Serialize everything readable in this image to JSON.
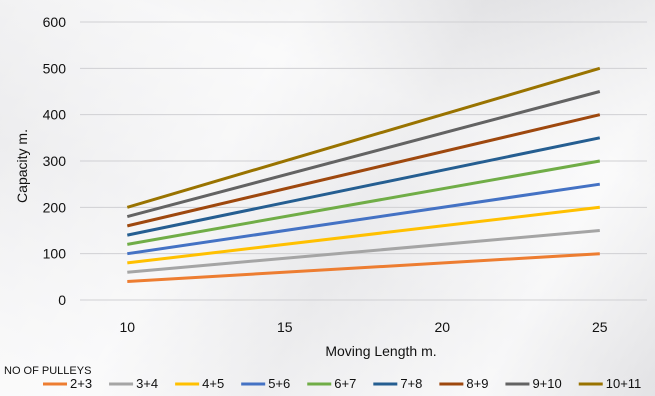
{
  "chart_data": {
    "type": "line",
    "title": "",
    "xlabel": "Moving Length m.",
    "ylabel": "Capacity m.",
    "xlim": [
      8.5,
      26.5
    ],
    "ylim": [
      0,
      600
    ],
    "x_ticks": [
      "10",
      "15",
      "20",
      "25"
    ],
    "y_ticks": [
      "0",
      "100",
      "200",
      "300",
      "400",
      "500",
      "600"
    ],
    "x": [
      10,
      25
    ],
    "grid": "horizontal",
    "legend_title": "NO OF PULLEYS",
    "legend_position": "bottom",
    "series": [
      {
        "name": "2+3",
        "color": "#ed7d31",
        "values": [
          40,
          100
        ]
      },
      {
        "name": "3+4",
        "color": "#a5a5a5",
        "values": [
          60,
          150
        ]
      },
      {
        "name": "4+5",
        "color": "#ffc000",
        "values": [
          80,
          200
        ]
      },
      {
        "name": "5+6",
        "color": "#4472c4",
        "values": [
          100,
          250
        ]
      },
      {
        "name": "6+7",
        "color": "#70ad47",
        "values": [
          120,
          300
        ]
      },
      {
        "name": "7+8",
        "color": "#255e91",
        "values": [
          140,
          350
        ]
      },
      {
        "name": "8+9",
        "color": "#9e480e",
        "values": [
          160,
          400
        ]
      },
      {
        "name": "9+10",
        "color": "#636363",
        "values": [
          180,
          450
        ]
      },
      {
        "name": "10+11",
        "color": "#997300",
        "values": [
          200,
          500
        ]
      }
    ]
  }
}
